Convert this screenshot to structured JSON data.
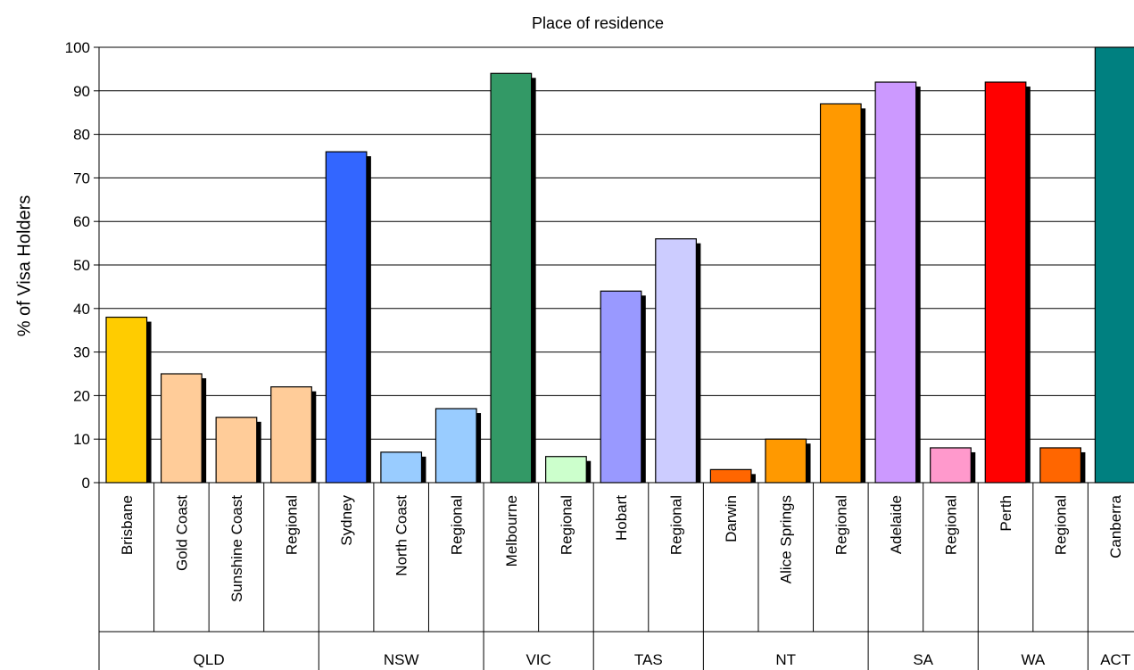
{
  "chart_data": {
    "type": "bar",
    "title": "Place of residence",
    "xlabel": "",
    "ylabel": "% of Visa Holders",
    "ylim": [
      0,
      100
    ],
    "yticks": [
      0,
      10,
      20,
      30,
      40,
      50,
      60,
      70,
      80,
      90,
      100
    ],
    "grid": true,
    "legend": "none",
    "categories": [
      "Brisbane",
      "Gold Coast",
      "Sunshine Coast",
      "Regional",
      "Sydney",
      "North Coast",
      "Regional",
      "Melbourne",
      "Regional",
      "Hobart",
      "Regional",
      "Darwin",
      "Alice Springs",
      "Regional",
      "Adelaide",
      "Regional",
      "Perth",
      "Regional",
      "Canberra"
    ],
    "values": [
      38,
      25,
      15,
      22,
      76,
      7,
      17,
      94,
      6,
      44,
      56,
      3,
      10,
      87,
      92,
      8,
      92,
      8,
      100
    ],
    "colors": [
      "#ffcc00",
      "#ffcc99",
      "#ffcc99",
      "#ffcc99",
      "#3366ff",
      "#99ccff",
      "#99ccff",
      "#339966",
      "#ccffcc",
      "#9999ff",
      "#ccccff",
      "#ff6600",
      "#ff9900",
      "#ff9900",
      "#cc99ff",
      "#ff99cc",
      "#ff0000",
      "#ff6600",
      "#008080"
    ],
    "groups": [
      {
        "name": "QLD",
        "count": 4
      },
      {
        "name": "NSW",
        "count": 3
      },
      {
        "name": "VIC",
        "count": 2
      },
      {
        "name": "TAS",
        "count": 2
      },
      {
        "name": "NT",
        "count": 3
      },
      {
        "name": "SA",
        "count": 2
      },
      {
        "name": "WA",
        "count": 2
      },
      {
        "name": "ACT",
        "count": 1
      }
    ]
  }
}
